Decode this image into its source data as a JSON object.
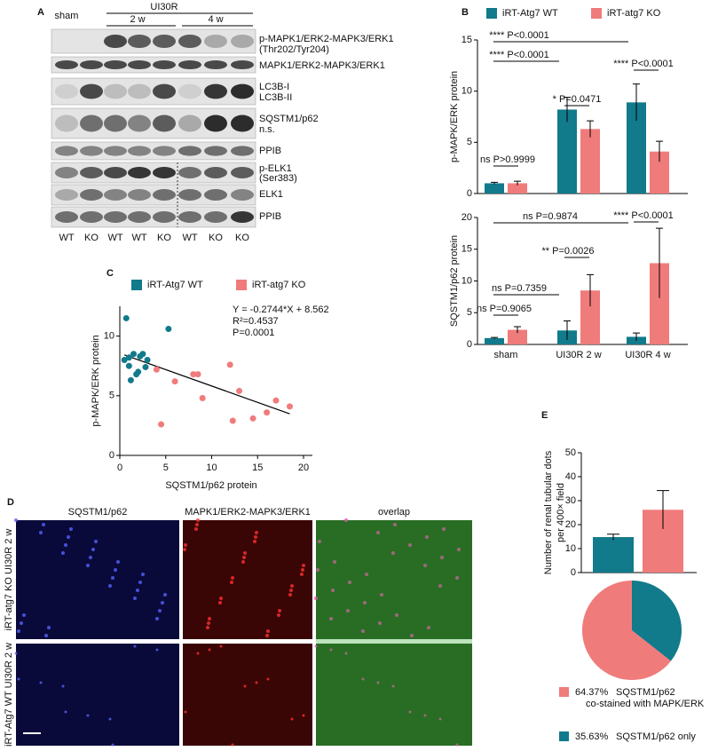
{
  "panel_labels": [
    "A",
    "B",
    "C",
    "D",
    "E"
  ],
  "blot": {
    "header": {
      "sham": "sham",
      "group": "UI30R",
      "week2": "2 w",
      "week4": "4 w"
    },
    "lanes": [
      "WT",
      "KO",
      "WT",
      "WT",
      "KO",
      "WT",
      "KO",
      "KO"
    ],
    "bands": [
      "p-MAPK1/ERK2-MAPK3/ERK1",
      "(Thr202/Tyr204)",
      "MAPK1/ERK2-MAPK3/ERK1",
      "LC3B-I",
      "LC3B-II",
      "SQSTM1/p62",
      "n.s.",
      "PPIB",
      "p-ELK1",
      "(Ser383)",
      "ELK1",
      "PPIB"
    ]
  },
  "chart_data": [
    {
      "type": "bar",
      "y_label": "p-MAPK/ERK protein",
      "ylim": [
        0,
        15
      ],
      "yticks": [
        0,
        5,
        10,
        15
      ],
      "series": [
        {
          "name": "iRT-Atg7 WT",
          "color": "#117a8b",
          "values": [
            1,
            8.2,
            8.9
          ],
          "errors": [
            0.1,
            1.2,
            1.8
          ]
        },
        {
          "name": "iRT-atg7 KO",
          "color": "#f07b7b",
          "values": [
            1,
            6.3,
            4.1
          ],
          "errors": [
            0.2,
            0.8,
            1.0
          ]
        }
      ],
      "annotations": [
        "**** P<0.0001",
        "**** P<0.0001",
        "ns P>0.9999",
        "* P=0.0471",
        "**** P<0.0001"
      ]
    },
    {
      "type": "bar",
      "y_label": "SQSTM1/p62 protein",
      "categories": [
        "sham",
        "UI30R 2 w",
        "UI30R 4 w"
      ],
      "ylim": [
        0,
        20
      ],
      "yticks": [
        0,
        5,
        10,
        15,
        20
      ],
      "series": [
        {
          "name": "iRT-Atg7 WT",
          "color": "#117a8b",
          "values": [
            1,
            2.2,
            1.2
          ],
          "errors": [
            0.1,
            1.5,
            0.6
          ]
        },
        {
          "name": "iRT-atg7 KO",
          "color": "#f07b7b",
          "values": [
            2.3,
            8.5,
            12.8
          ],
          "errors": [
            0.5,
            2.5,
            5.5
          ]
        }
      ],
      "annotations": [
        "ns P=0.9874",
        "**** P<0.0001",
        "** P=0.0026",
        "ns P=0.7359",
        "ns P=0.9065"
      ]
    },
    {
      "type": "scatter",
      "x_label": "SQSTM1/p62 protein",
      "y_label": "p-MAPK/ERK protein",
      "xlim": [
        0,
        20
      ],
      "xticks": [
        0,
        5,
        10,
        15,
        20
      ],
      "ylim": [
        0,
        12.5
      ],
      "yticks": [
        0,
        5,
        10
      ],
      "series": [
        {
          "name": "iRT-Atg7 WT",
          "color": "#117a8b",
          "x": [
            0.5,
            0.7,
            1,
            1.2,
            1.5,
            2,
            2.2,
            1,
            1.8,
            2.5,
            3,
            5.3,
            2.8
          ],
          "values": [
            8,
            11.5,
            7.5,
            6.3,
            8.5,
            7,
            8.3,
            8.2,
            6.8,
            8.5,
            8,
            10.6,
            7.4
          ]
        },
        {
          "name": "iRT-atg7 KO",
          "color": "#f07b7b",
          "x": [
            4,
            4.5,
            6,
            8.5,
            9,
            12,
            12.3,
            13,
            14.5,
            16,
            17,
            18.5,
            8
          ],
          "values": [
            7.2,
            2.6,
            6.2,
            6.8,
            4.8,
            7.6,
            2.9,
            5.4,
            3.1,
            3.6,
            4.6,
            4.1,
            6.8
          ]
        }
      ],
      "fit": {
        "slope": -0.2744,
        "intercept": 8.562
      },
      "annotations": [
        "Y = -0.2744*X + 8.562",
        "R²=0.4537",
        "P=0.0001"
      ]
    },
    {
      "type": "bar",
      "y_label": "Number of renal tubular dots",
      "y_label2": "per 400× field",
      "ylim": [
        0,
        50
      ],
      "yticks": [
        0,
        10,
        20,
        30,
        40,
        50
      ],
      "series": [
        {
          "name": "iRT-Atg7 WT",
          "color": "#117a8b",
          "values": [
            14.8
          ],
          "errors": [
            1.2
          ]
        },
        {
          "name": "iRT-atg7 KO",
          "color": "#f07b7b",
          "values": [
            26.2
          ],
          "errors": [
            8
          ]
        }
      ]
    },
    {
      "type": "pie",
      "values": [
        64.37,
        35.63
      ],
      "value_labels": [
        "64.37%",
        "35.63%"
      ],
      "labels": [
        "SQSTM1/p62\nco-stained with MAPK/ERK",
        "SQSTM1/p62 only"
      ],
      "colors": [
        "#f07b7b",
        "#117a8b"
      ]
    }
  ],
  "micro": {
    "columns": [
      "SQSTM1/p62",
      "MAPK1/ERK2-MAPK3/ERK1",
      "overlap"
    ],
    "rows": [
      "iRT-atg7 KO UI30R 2 w",
      "iRT-Atg7 WT UI30R 2 w"
    ]
  }
}
